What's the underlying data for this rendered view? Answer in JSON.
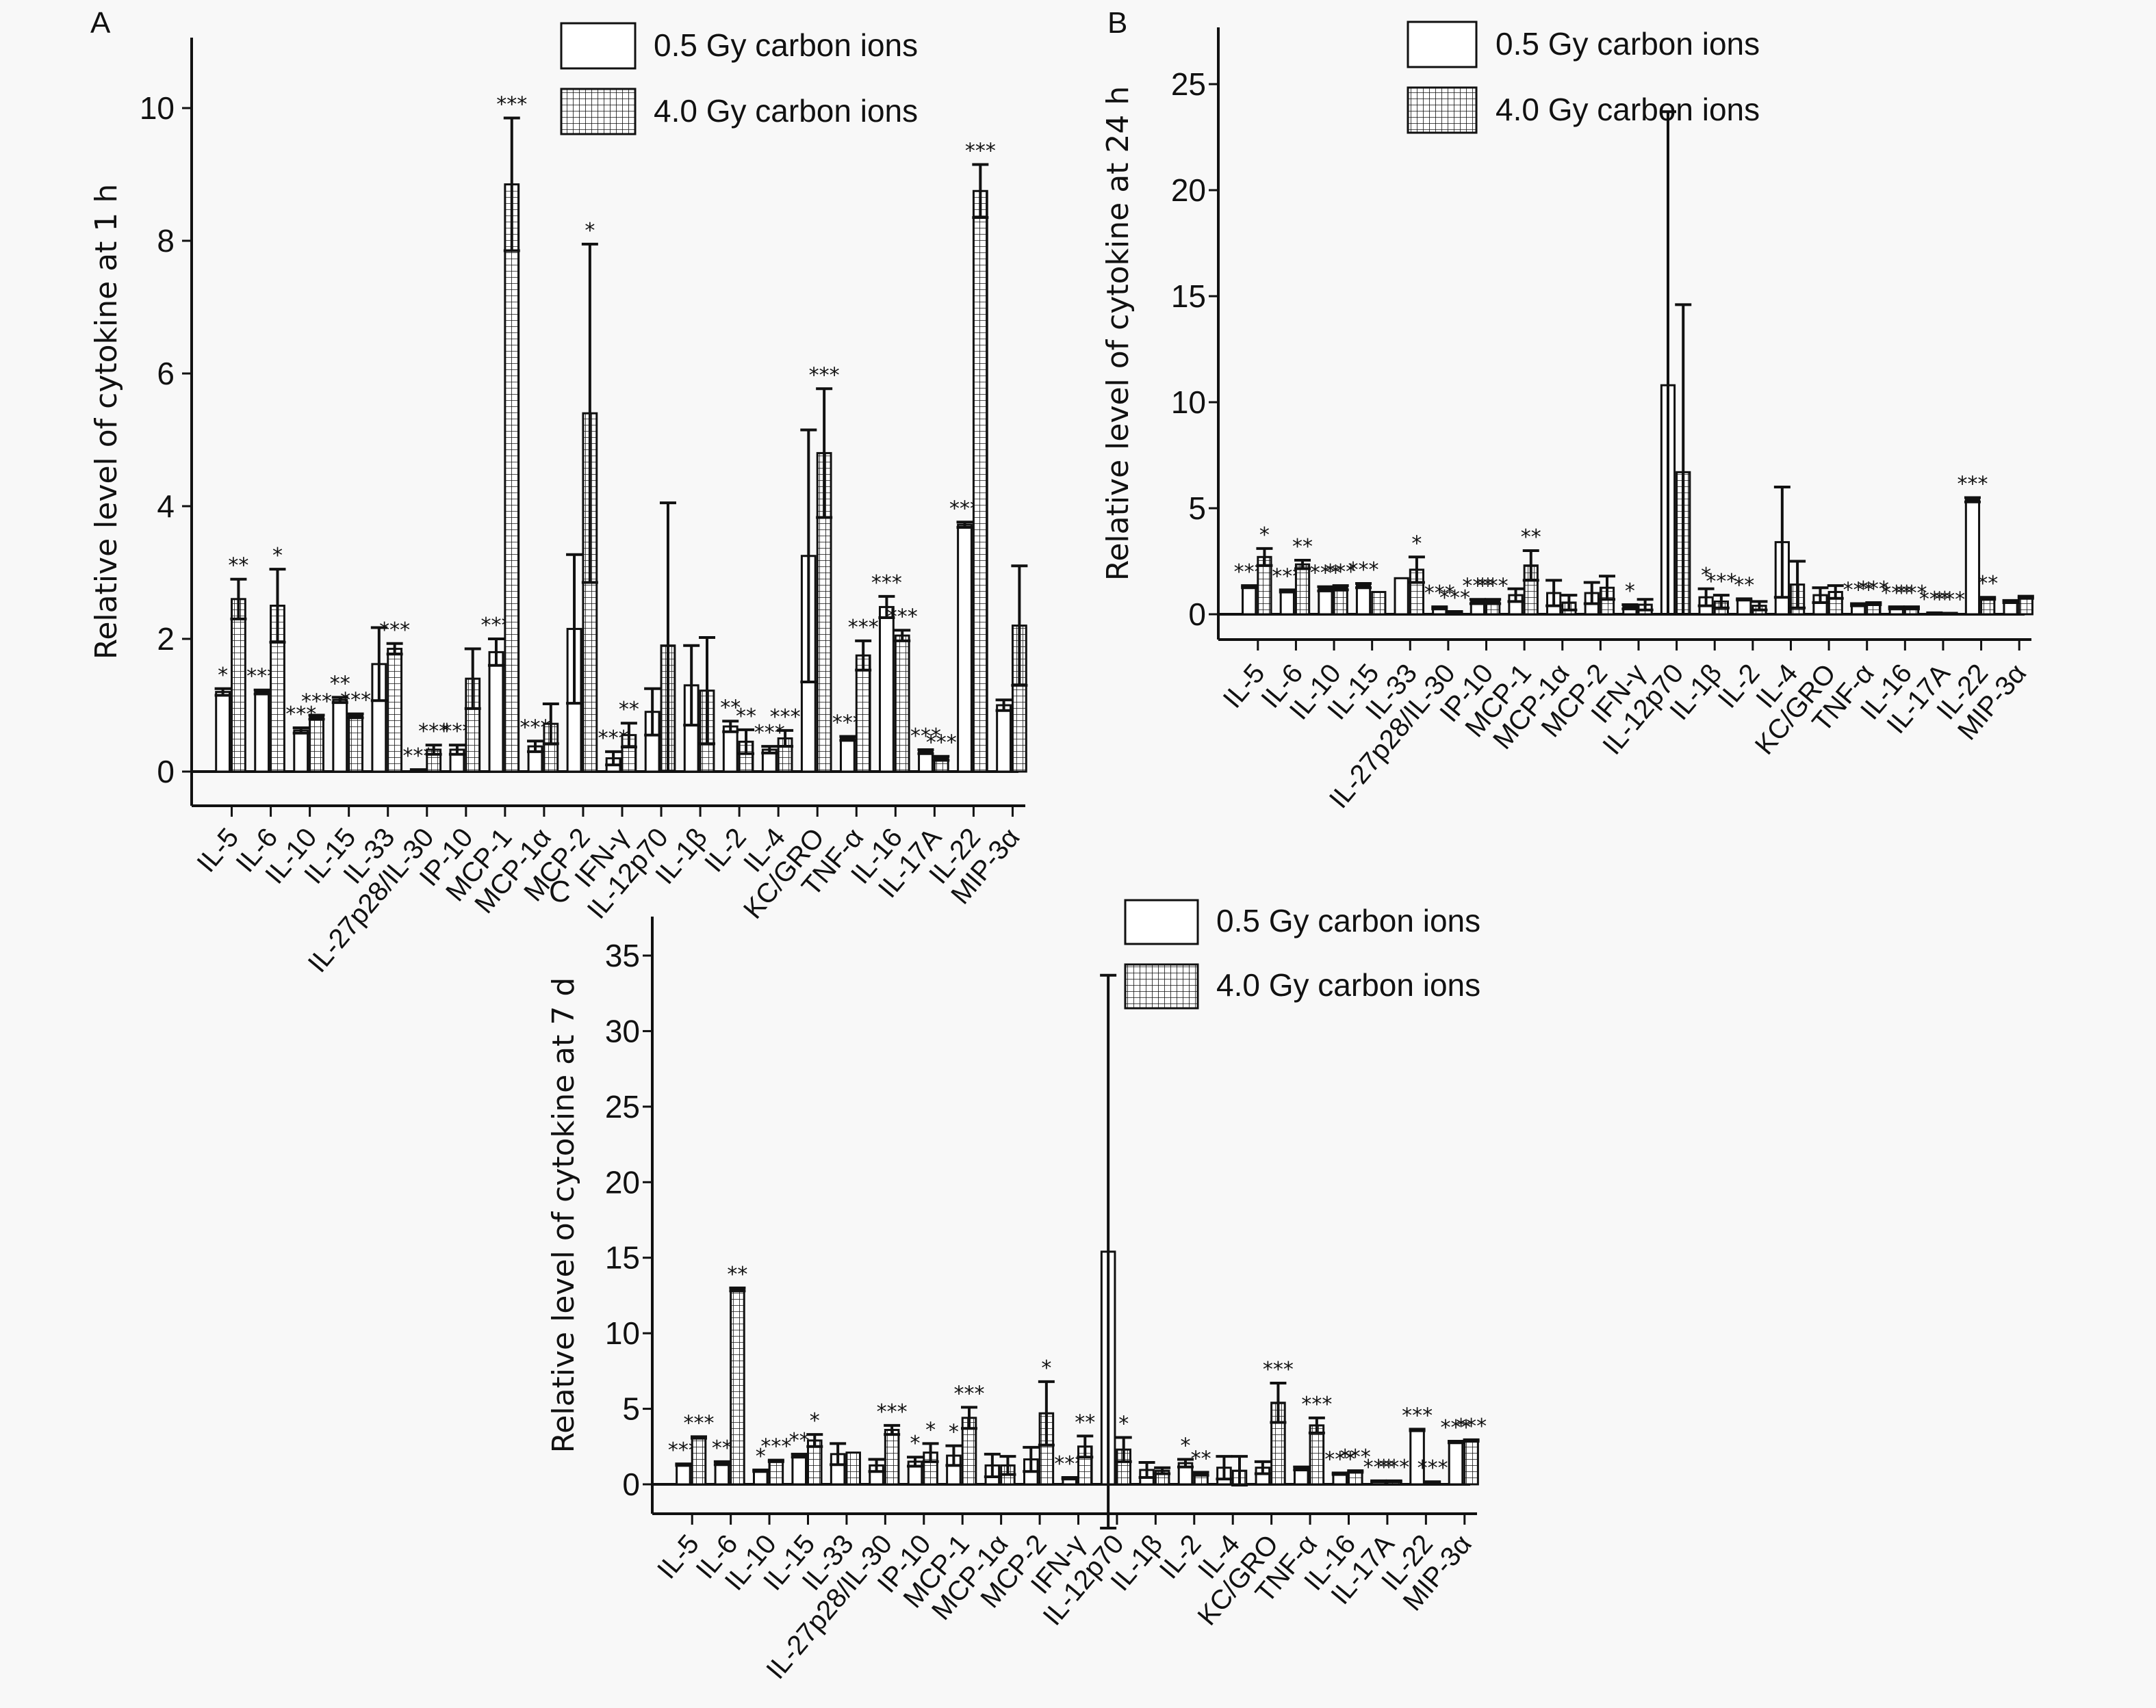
{
  "figure": {
    "panels": [
      "A",
      "B",
      "C"
    ],
    "legend": {
      "low": "0.5 Gy carbon ions",
      "high": "4.0 Gy carbon ions"
    },
    "colors": {
      "ink": "#111111",
      "background": "#f8f8f8",
      "bar_fill_low": "#ffffff"
    }
  },
  "chart_data": [
    {
      "panel": "A",
      "type": "bar",
      "title": "",
      "xlabel": "",
      "ylabel": "Relative level of cytokine at 1 h",
      "ylim": [
        0,
        11
      ],
      "yticks": [
        0,
        2,
        4,
        6,
        8,
        10
      ],
      "grid": false,
      "legend_position": "top-right",
      "categories": [
        "IL-5",
        "IL-6",
        "IL-10",
        "IL-15",
        "IL-33",
        "IL-27p28/IL-30",
        "IP-10",
        "MCP-1",
        "MCP-1α",
        "MCP-2",
        "IFN-γ",
        "IL-12p70",
        "IL-1β",
        "IL-2",
        "IL-4",
        "KC/GRO",
        "TNF-α",
        "IL-16",
        "IL-17A",
        "IL-22",
        "MIP-3α"
      ],
      "series": [
        {
          "name": "0.5 Gy carbon ions",
          "values": [
            1.2,
            1.2,
            0.62,
            1.08,
            1.62,
            0.02,
            0.33,
            1.8,
            0.38,
            2.15,
            0.2,
            0.9,
            1.3,
            0.68,
            0.33,
            3.25,
            0.5,
            2.48,
            0.3,
            3.72,
            1.0
          ],
          "errors": [
            0.05,
            0.03,
            0.04,
            0.04,
            0.55,
            0.01,
            0.07,
            0.2,
            0.08,
            1.12,
            0.1,
            0.35,
            0.6,
            0.08,
            0.05,
            1.9,
            0.03,
            0.16,
            0.03,
            0.04,
            0.08
          ],
          "significance": [
            "*",
            "***",
            "***",
            "**",
            "",
            "***",
            "***",
            "***",
            "***",
            "",
            "***",
            "",
            "",
            "**",
            "***",
            "",
            "***",
            "***",
            "***",
            "***",
            ""
          ]
        },
        {
          "name": "4.0 Gy carbon ions",
          "values": [
            2.6,
            2.5,
            0.82,
            0.84,
            1.85,
            0.33,
            1.4,
            8.85,
            0.72,
            5.4,
            0.55,
            1.9,
            1.22,
            0.45,
            0.5,
            4.8,
            1.75,
            2.05,
            0.2,
            8.75,
            2.2
          ],
          "errors": [
            0.3,
            0.55,
            0.03,
            0.03,
            0.08,
            0.07,
            0.45,
            1.0,
            0.3,
            2.55,
            0.18,
            2.15,
            0.8,
            0.18,
            0.12,
            0.97,
            0.22,
            0.08,
            0.03,
            0.4,
            0.9
          ],
          "significance": [
            "**",
            "*",
            "***",
            "***",
            "***",
            "***",
            "",
            "***",
            "",
            "*",
            "**",
            "",
            "",
            "**",
            "***",
            "***",
            "***",
            "***",
            "***",
            "***",
            ""
          ]
        }
      ]
    },
    {
      "panel": "B",
      "type": "bar",
      "title": "",
      "xlabel": "",
      "ylabel": "Relative level of cytokine at 24 h",
      "ylim": [
        0,
        27
      ],
      "yticks": [
        0,
        5,
        10,
        15,
        20,
        25
      ],
      "grid": false,
      "legend_position": "top-center",
      "categories": [
        "IL-5",
        "IL-6",
        "IL-10",
        "IL-15",
        "IL-33",
        "IL-27p28/IL-30",
        "IP-10",
        "MCP-1",
        "MCP-1α",
        "MCP-2",
        "IFN-γ",
        "IL-12p70",
        "IL-1β",
        "IL-2",
        "IL-4",
        "KC/GRO",
        "TNF-α",
        "IL-16",
        "IL-17A",
        "IL-22",
        "MIP-3α"
      ],
      "series": [
        {
          "name": "0.5 Gy carbon ions",
          "values": [
            1.3,
            1.1,
            1.2,
            1.35,
            1.7,
            0.3,
            0.6,
            0.9,
            1.0,
            1.0,
            0.35,
            10.8,
            0.8,
            0.7,
            3.4,
            0.9,
            0.45,
            0.3,
            0.05,
            5.4,
            0.6
          ],
          "errors": [
            0.05,
            0.05,
            0.1,
            0.1,
            0.0,
            0.05,
            0.1,
            0.3,
            0.6,
            0.5,
            0.1,
            12.9,
            0.4,
            0.03,
            2.6,
            0.35,
            0.05,
            0.05,
            0.02,
            0.1,
            0.05
          ],
          "significance": [
            "***",
            "***",
            "***",
            "***",
            "",
            "***",
            "***",
            "",
            "",
            "",
            "*",
            "",
            "*",
            "**",
            "",
            "",
            "***",
            "***",
            "***",
            "***",
            ""
          ]
        },
        {
          "name": "4.0 Gy carbon ions",
          "values": [
            2.7,
            2.35,
            1.25,
            1.05,
            2.1,
            0.1,
            0.6,
            2.3,
            0.55,
            1.25,
            0.45,
            6.7,
            0.6,
            0.4,
            1.4,
            1.05,
            0.5,
            0.3,
            0.03,
            0.75,
            0.8
          ],
          "errors": [
            0.4,
            0.2,
            0.1,
            0.0,
            0.6,
            0.03,
            0.1,
            0.7,
            0.35,
            0.55,
            0.25,
            7.9,
            0.3,
            0.2,
            1.1,
            0.3,
            0.05,
            0.05,
            0.02,
            0.05,
            0.05
          ],
          "significance": [
            "*",
            "**",
            "***",
            "",
            "*",
            "***",
            "***",
            "**",
            "",
            "",
            "",
            "",
            "***",
            "",
            "",
            "",
            "***",
            "***",
            "***",
            "**",
            ""
          ]
        }
      ]
    },
    {
      "panel": "C",
      "type": "bar",
      "title": "",
      "xlabel": "",
      "ylabel": "Relative level of cytokine at 7 d",
      "ylim": [
        -4,
        38
      ],
      "yticks": [
        0,
        5,
        10,
        15,
        20,
        25,
        30,
        35
      ],
      "grid": false,
      "legend_position": "top-right",
      "categories": [
        "IL-5",
        "IL-6",
        "IL-10",
        "IL-15",
        "IL-33",
        "IL-27p28/IL-30",
        "IP-10",
        "MCP-1",
        "MCP-1α",
        "MCP-2",
        "IFN-γ",
        "IL-12p70",
        "IL-1β",
        "IL-2",
        "IL-4",
        "KC/GRO",
        "TNF-α",
        "IL-16",
        "IL-17A",
        "IL-22",
        "MIP-3α"
      ],
      "series": [
        {
          "name": "0.5 Gy carbon ions",
          "values": [
            1.3,
            1.4,
            0.9,
            1.9,
            2.0,
            1.25,
            1.5,
            1.9,
            1.25,
            1.65,
            0.4,
            15.4,
            0.95,
            1.4,
            1.1,
            1.1,
            1.05,
            0.7,
            0.2,
            3.6,
            2.8
          ],
          "errors": [
            0.05,
            0.1,
            0.05,
            0.1,
            0.7,
            0.4,
            0.3,
            0.65,
            0.75,
            0.8,
            0.05,
            18.3,
            0.5,
            0.25,
            0.75,
            0.4,
            0.1,
            0.05,
            0.03,
            0.05,
            0.05
          ],
          "significance": [
            "***",
            "**",
            "*",
            "**",
            "",
            "",
            "*",
            "*",
            "",
            "",
            "***",
            "",
            "",
            "*",
            "",
            "",
            "",
            "***",
            "***",
            "***",
            "***"
          ]
        },
        {
          "name": "4.0 Gy carbon ions",
          "values": [
            3.1,
            12.9,
            1.55,
            2.9,
            2.1,
            3.6,
            2.1,
            4.4,
            1.25,
            4.7,
            2.5,
            2.3,
            0.9,
            0.7,
            0.9,
            5.4,
            3.9,
            0.85,
            0.2,
            0.15,
            2.9
          ],
          "errors": [
            0.05,
            0.1,
            0.05,
            0.4,
            0.0,
            0.3,
            0.6,
            0.7,
            0.6,
            2.1,
            0.7,
            0.8,
            0.2,
            0.1,
            0.95,
            1.3,
            0.5,
            0.05,
            0.03,
            0.02,
            0.05
          ],
          "significance": [
            "***",
            "**",
            "***",
            "*",
            "",
            "***",
            "*",
            "***",
            "",
            "*",
            "**",
            "*",
            "",
            "**",
            "",
            "***",
            "***",
            "***",
            "***",
            "***",
            "***"
          ]
        }
      ]
    }
  ]
}
